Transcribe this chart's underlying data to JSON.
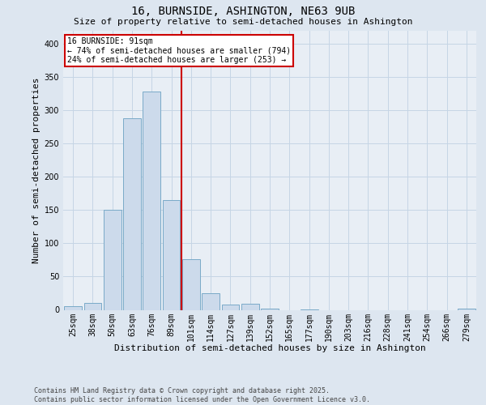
{
  "title": "16, BURNSIDE, ASHINGTON, NE63 9UB",
  "subtitle": "Size of property relative to semi-detached houses in Ashington",
  "xlabel": "Distribution of semi-detached houses by size in Ashington",
  "ylabel": "Number of semi-detached properties",
  "footer_line1": "Contains HM Land Registry data © Crown copyright and database right 2025.",
  "footer_line2": "Contains public sector information licensed under the Open Government Licence v3.0.",
  "categories": [
    "25sqm",
    "38sqm",
    "50sqm",
    "63sqm",
    "76sqm",
    "89sqm",
    "101sqm",
    "114sqm",
    "127sqm",
    "139sqm",
    "152sqm",
    "165sqm",
    "177sqm",
    "190sqm",
    "203sqm",
    "216sqm",
    "228sqm",
    "241sqm",
    "254sqm",
    "266sqm",
    "279sqm"
  ],
  "values": [
    5,
    10,
    150,
    288,
    328,
    165,
    76,
    25,
    8,
    9,
    2,
    0,
    1,
    0,
    0,
    0,
    0,
    0,
    0,
    0,
    2
  ],
  "bar_color": "#ccdaeb",
  "bar_edgecolor": "#7aaac8",
  "vline_x_index": 5.5,
  "vline_color": "#cc0000",
  "annotation_line1": "16 BURNSIDE: 91sqm",
  "annotation_line2": "← 74% of semi-detached houses are smaller (794)",
  "annotation_line3": "24% of semi-detached houses are larger (253) →",
  "annotation_box_color": "#cc0000",
  "annotation_bg": "#ffffff",
  "ylim": [
    0,
    420
  ],
  "yticks": [
    0,
    50,
    100,
    150,
    200,
    250,
    300,
    350,
    400
  ],
  "grid_color": "#c5d5e5",
  "background_color": "#dde6f0",
  "plot_bg": "#e8eef5",
  "title_fontsize": 10,
  "subtitle_fontsize": 8,
  "ylabel_fontsize": 8,
  "xlabel_fontsize": 8,
  "tick_fontsize": 7,
  "footer_fontsize": 6
}
